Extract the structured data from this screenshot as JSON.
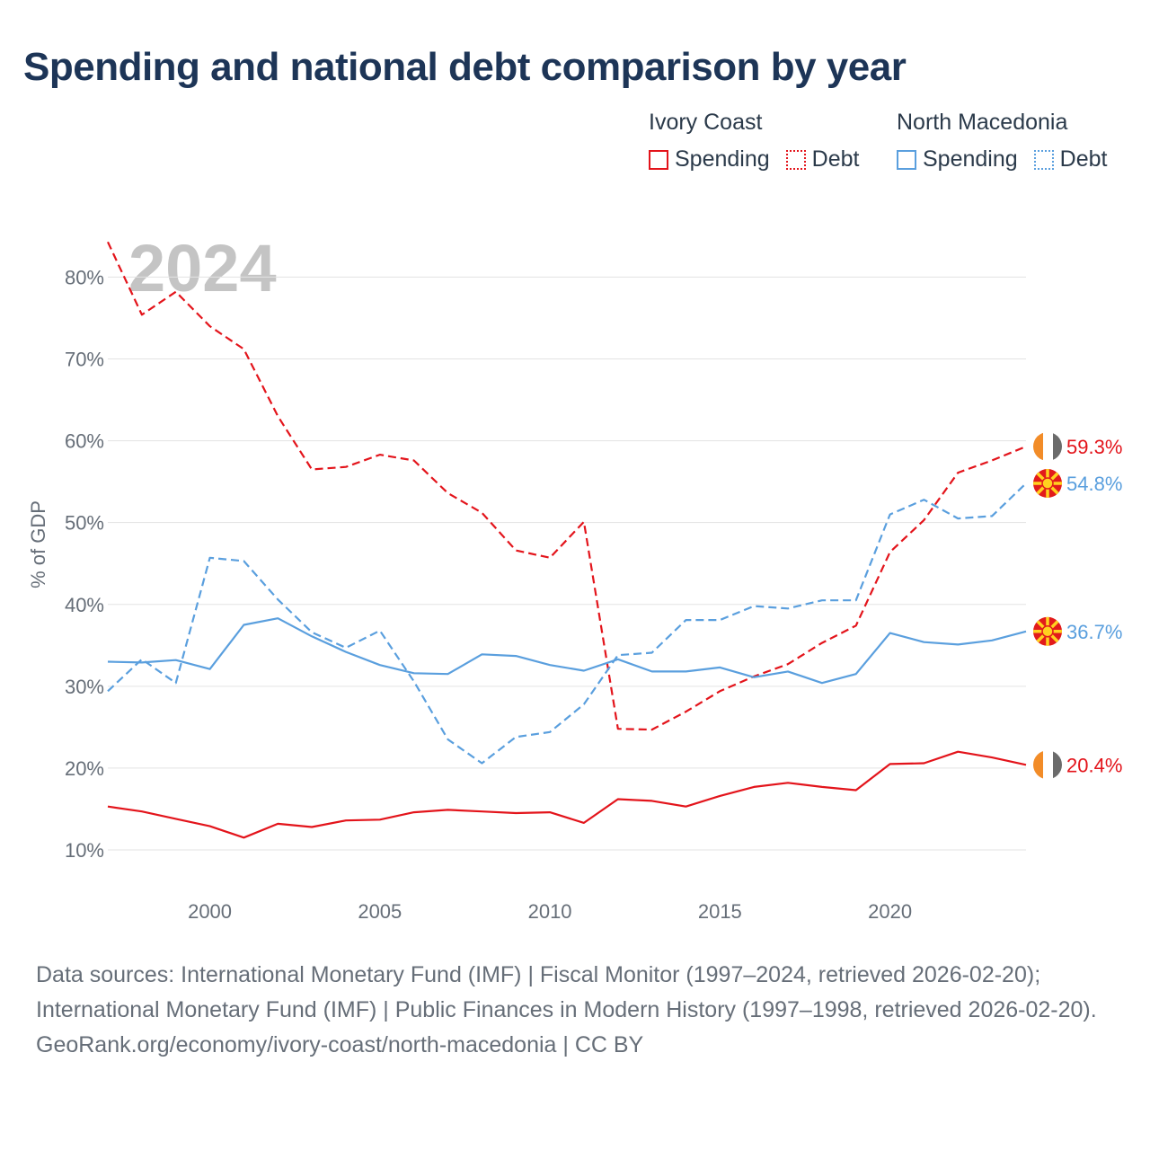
{
  "title": "Spending and national debt comparison by year",
  "legend": {
    "groups": [
      {
        "country": "Ivory Coast",
        "spending_label": "Spending",
        "debt_label": "Debt",
        "color": "#e3141b"
      },
      {
        "country": "North Macedonia",
        "spending_label": "Spending",
        "debt_label": "Debt",
        "color": "#5a9fde"
      }
    ]
  },
  "chart_data": {
    "type": "line",
    "title": "Spending and national debt comparison by year",
    "year_label": "2024",
    "xlabel": "",
    "ylabel": "% of GDP",
    "xlim": [
      1997,
      2024
    ],
    "ylim": [
      10,
      84
    ],
    "x_ticks": [
      2000,
      2005,
      2010,
      2015,
      2020
    ],
    "y_ticks": [
      10,
      20,
      30,
      40,
      50,
      60,
      70,
      80
    ],
    "y_tick_labels": [
      "10%",
      "20%",
      "30%",
      "40%",
      "50%",
      "60%",
      "70%",
      "80%"
    ],
    "grid": true,
    "x": [
      1997,
      1998,
      1999,
      2000,
      2001,
      2002,
      2003,
      2004,
      2005,
      2006,
      2007,
      2008,
      2009,
      2010,
      2011,
      2012,
      2013,
      2014,
      2015,
      2016,
      2017,
      2018,
      2019,
      2020,
      2021,
      2022,
      2023,
      2024
    ],
    "series": [
      {
        "name": "Ivory Coast Debt",
        "country": "Ivory Coast",
        "metric": "Debt",
        "color": "#e3141b",
        "dashed": true,
        "values": [
          84.3,
          75.4,
          78.2,
          74.0,
          71.2,
          63.0,
          56.5,
          56.8,
          58.3,
          57.6,
          53.6,
          51.2,
          46.6,
          45.7,
          50.1,
          24.8,
          24.7,
          26.9,
          29.4,
          31.2,
          32.7,
          35.3,
          37.4,
          46.4,
          50.3,
          56.1,
          57.6,
          59.3
        ],
        "end_label": "59.3%"
      },
      {
        "name": "North Macedonia Debt",
        "country": "North Macedonia",
        "metric": "Debt",
        "color": "#5a9fde",
        "dashed": true,
        "values": [
          29.4,
          33.3,
          30.4,
          45.7,
          45.3,
          40.6,
          36.6,
          34.7,
          36.8,
          30.6,
          23.5,
          20.6,
          23.8,
          24.4,
          27.8,
          33.8,
          34.1,
          38.1,
          38.1,
          39.8,
          39.5,
          40.5,
          40.5,
          51.0,
          52.8,
          50.5,
          50.8,
          54.8
        ],
        "end_label": "54.8%"
      },
      {
        "name": "North Macedonia Spending",
        "country": "North Macedonia",
        "metric": "Spending",
        "color": "#5a9fde",
        "dashed": false,
        "values": [
          33.0,
          32.9,
          33.2,
          32.1,
          37.5,
          38.3,
          36.1,
          34.2,
          32.6,
          31.6,
          31.5,
          33.9,
          33.7,
          32.6,
          31.9,
          33.3,
          31.8,
          31.8,
          32.3,
          31.1,
          31.8,
          30.4,
          31.5,
          36.5,
          35.4,
          35.1,
          35.6,
          36.7
        ],
        "end_label": "36.7%"
      },
      {
        "name": "Ivory Coast Spending",
        "country": "Ivory Coast",
        "metric": "Spending",
        "color": "#e3141b",
        "dashed": false,
        "values": [
          15.3,
          14.7,
          13.8,
          12.9,
          11.5,
          13.2,
          12.8,
          13.6,
          13.7,
          14.6,
          14.9,
          14.7,
          14.5,
          14.6,
          13.3,
          16.2,
          16.0,
          15.3,
          16.6,
          17.7,
          18.2,
          17.7,
          17.3,
          20.5,
          20.6,
          22.0,
          21.3,
          20.4
        ],
        "end_label": "20.4%"
      }
    ]
  },
  "footer": {
    "sources": "Data sources: International Monetary Fund (IMF) | Fiscal Monitor (1997–2024, retrieved 2026-02-20); International Monetary Fund (IMF) | Public Finances in Modern History (1997–1998, retrieved 2026-02-20).",
    "site": "GeoRank.org/economy/ivory-coast/north-macedonia | CC BY"
  }
}
